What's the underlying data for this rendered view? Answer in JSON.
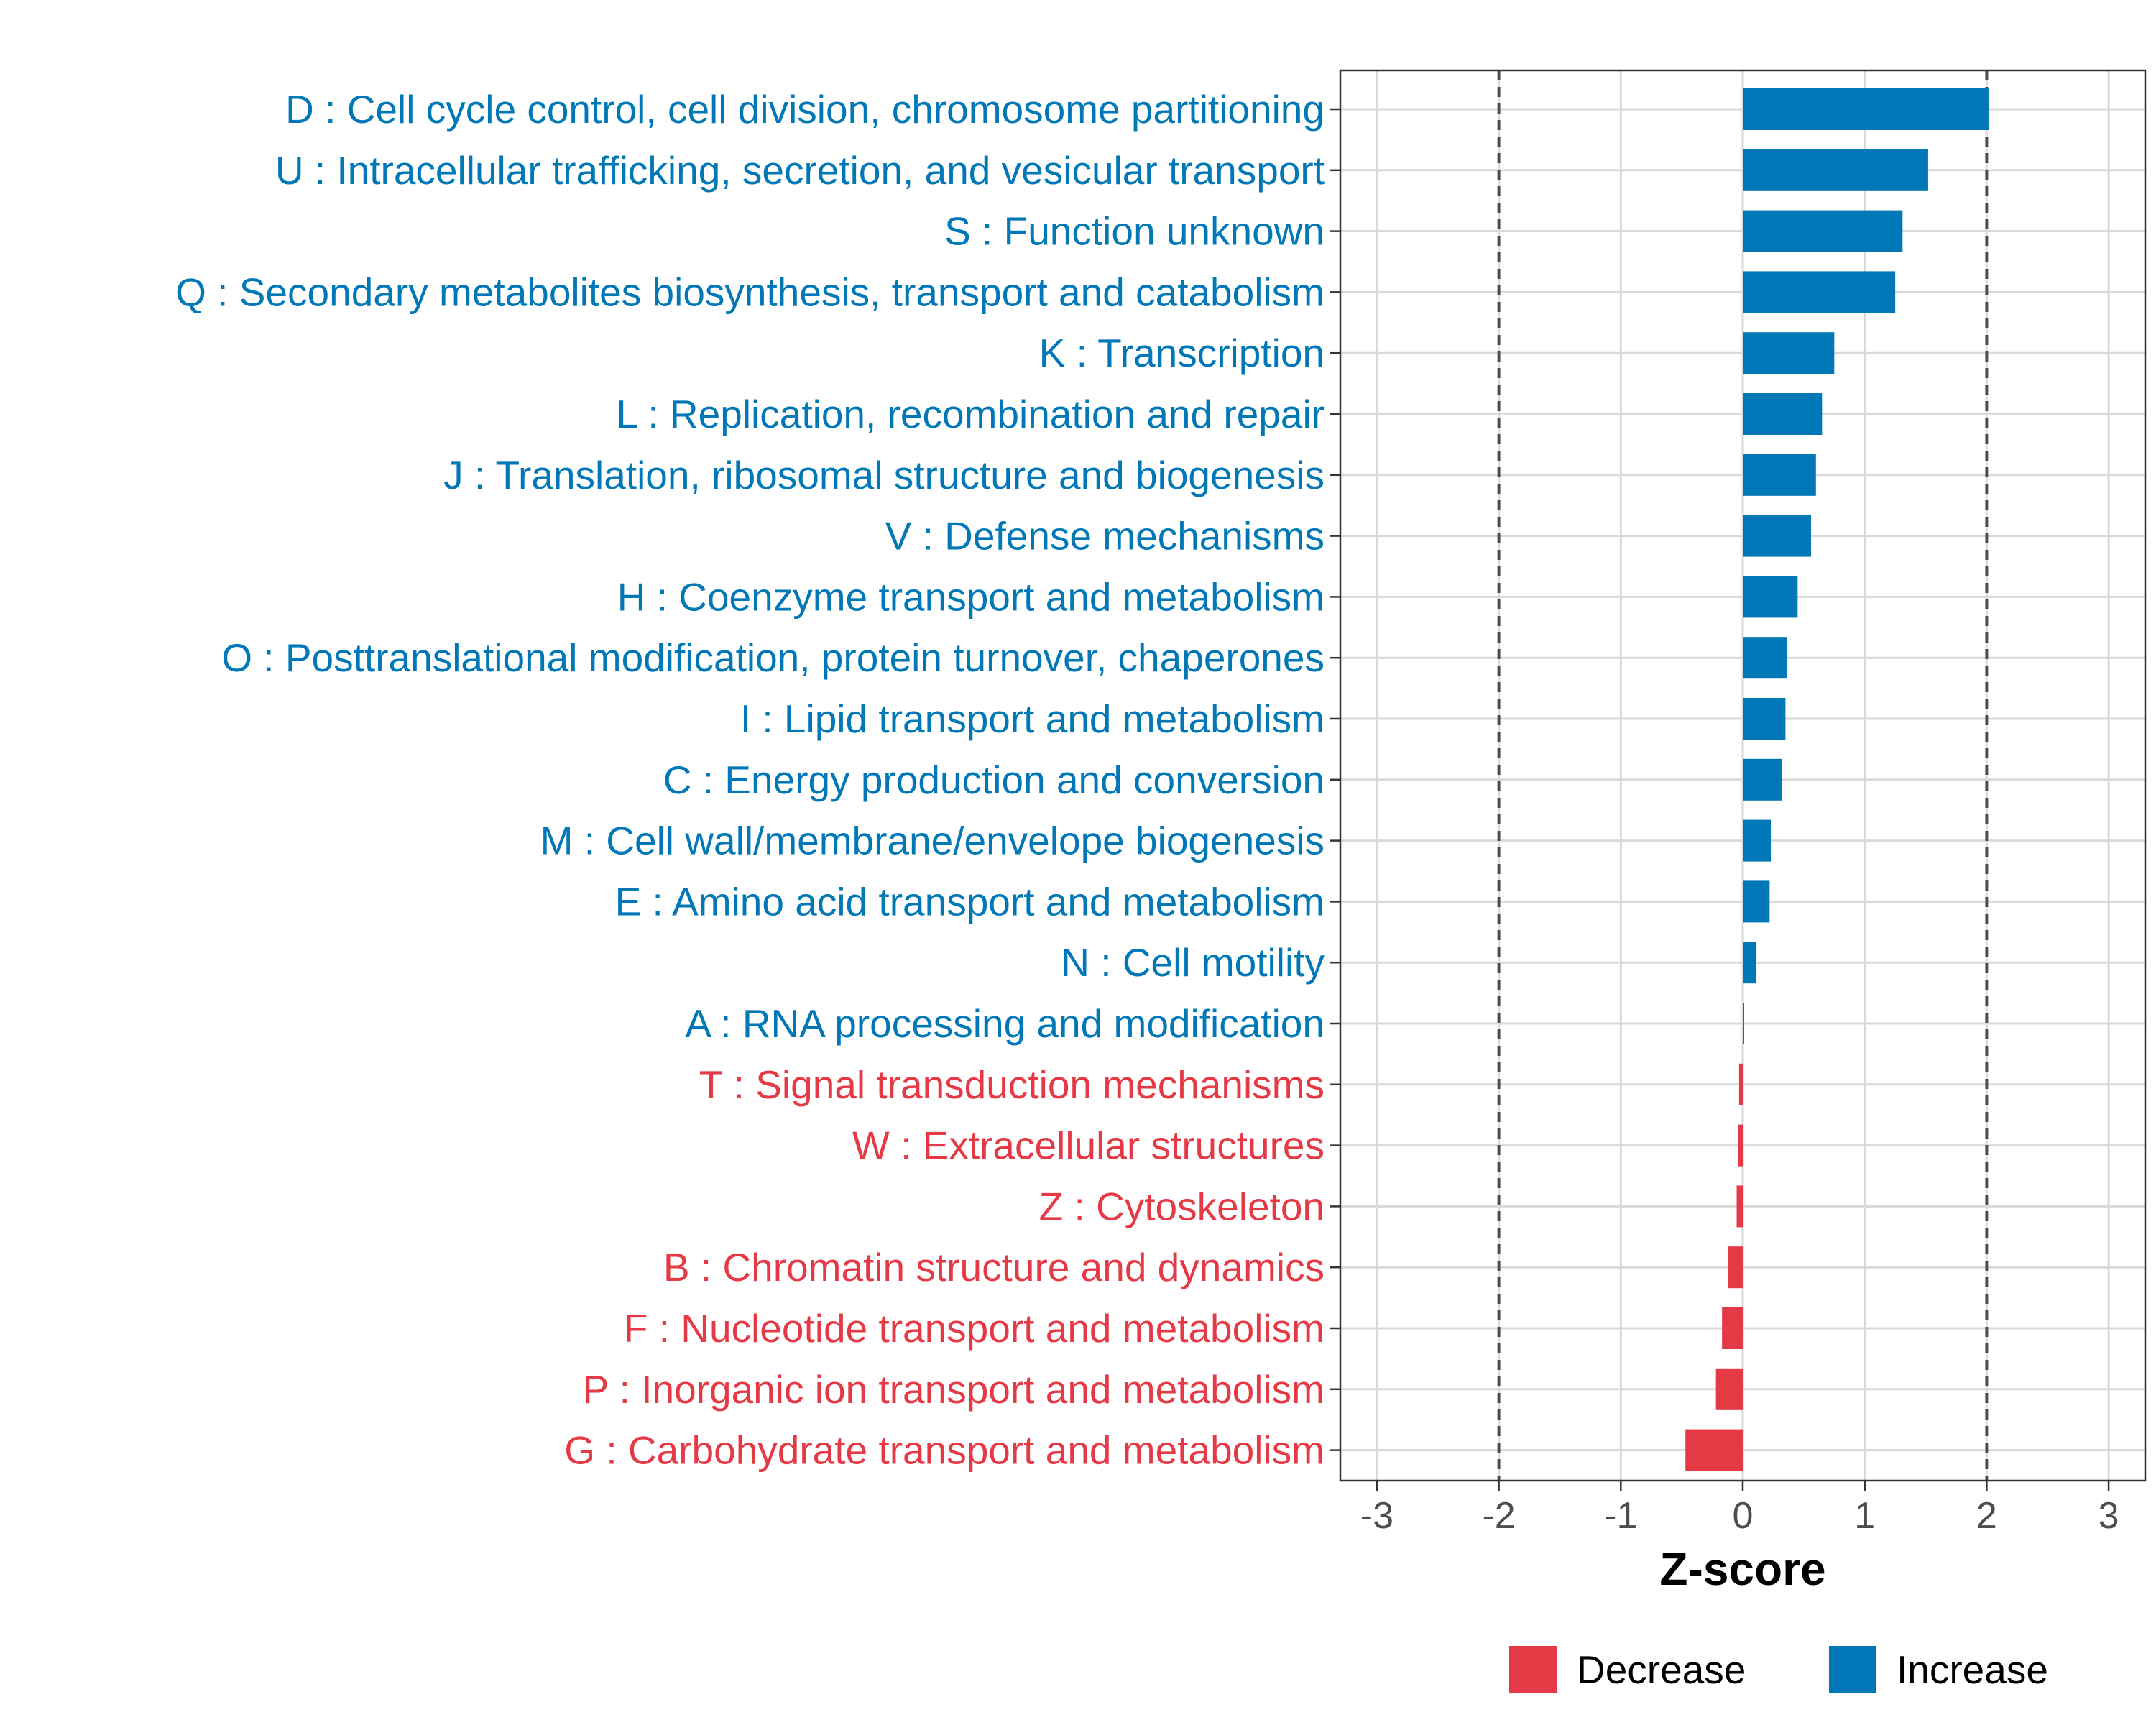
{
  "chart_data": {
    "type": "bar",
    "orientation": "horizontal",
    "title": "",
    "xlabel": "Z-score",
    "ylabel": "",
    "xlim": [
      -3.3,
      3.3
    ],
    "x_ticks": [
      -3,
      -2,
      -1,
      0,
      1,
      2,
      3
    ],
    "x_tick_labels": [
      "-3",
      "-2",
      "-1",
      "0",
      "1",
      "2",
      "3"
    ],
    "reference_lines": [
      -2,
      2
    ],
    "grid": true,
    "legend_position": "bottom",
    "legend": [
      {
        "label": "Decrease",
        "color": "#e63946"
      },
      {
        "label": "Increase",
        "color": "#0077b6"
      }
    ],
    "categories": [
      "D : Cell cycle control, cell division, chromosome partitioning",
      "U : Intracellular trafficking, secretion, and vesicular transport",
      "S : Function unknown",
      "Q : Secondary metabolites biosynthesis, transport and catabolism",
      "K : Transcription",
      "L : Replication, recombination and repair",
      "J : Translation, ribosomal structure and biogenesis",
      "V : Defense mechanisms",
      "H : Coenzyme transport and metabolism",
      "O : Posttranslational modification, protein turnover, chaperones",
      "I : Lipid transport and metabolism",
      "C : Energy production and conversion",
      "M : Cell wall/membrane/envelope biogenesis",
      "E : Amino acid transport and metabolism",
      "N : Cell motility",
      "A : RNA processing and modification",
      "T : Signal transduction mechanisms",
      "W : Extracellular structures",
      "Z : Cytoskeleton",
      "B : Chromatin structure and dynamics",
      "F : Nucleotide transport and metabolism",
      "P : Inorganic ion transport and metabolism",
      "G : Carbohydrate transport and metabolism"
    ],
    "values": [
      2.02,
      1.52,
      1.31,
      1.25,
      0.75,
      0.65,
      0.6,
      0.56,
      0.45,
      0.36,
      0.35,
      0.32,
      0.23,
      0.22,
      0.11,
      0.01,
      -0.03,
      -0.04,
      -0.05,
      -0.12,
      -0.17,
      -0.22,
      -0.47
    ],
    "colors": {
      "increase": "#0077b6",
      "decrease": "#e63946",
      "grid": "#d9d9d9",
      "axis_text": "#4d4d4d",
      "reference_line": "#4d4d4d"
    }
  }
}
